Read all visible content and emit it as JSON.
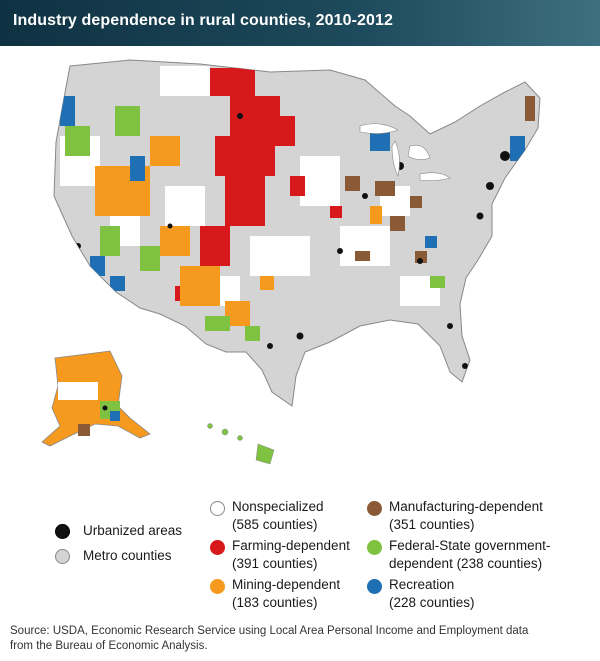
{
  "title": "Industry dependence in rural counties, 2010-2012",
  "colors": {
    "title_bar": "#123c4e",
    "metro": "#d4d4d4",
    "urbanized": "#111111",
    "nonspecialized": "#ffffff",
    "farming": "#d7191c",
    "mining": "#f59a1e",
    "manufacturing": "#8a5a36",
    "government": "#7fc241",
    "recreation": "#1f6fb5"
  },
  "legend": {
    "urbanized": "Urbanized areas",
    "metro": "Metro counties",
    "nonspecialized": {
      "line1": "Nonspecialized",
      "line2": "(585 counties)"
    },
    "farming": {
      "line1": "Farming-dependent",
      "line2": "(391 counties)"
    },
    "mining": {
      "line1": "Mining-dependent",
      "line2": "(183 counties)"
    },
    "manufacturing": {
      "line1": "Manufacturing-dependent",
      "line2": "(351 counties)"
    },
    "government": {
      "line1": "Federal-State government-",
      "line2": "dependent (238 counties)"
    },
    "recreation": {
      "line1": "Recreation",
      "line2": "(228 counties)"
    }
  },
  "source": {
    "line1": "Source: USDA, Economic Research Service using Local Area Personal Income and Employment data",
    "line2": "from the Bureau of Economic Analysis."
  }
}
